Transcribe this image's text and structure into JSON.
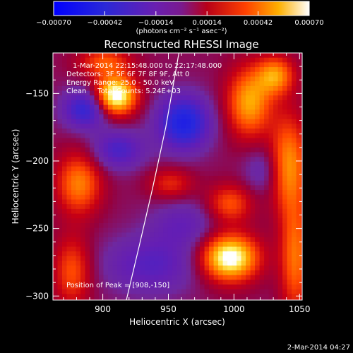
{
  "chart_data": {
    "type": "heatmap",
    "title": "Reconstructed RHESSI Image",
    "xlabel": "Heliocentric X (arcsec)",
    "ylabel": "Heliocentric Y (arcsec)",
    "xlim": [
      862,
      1052
    ],
    "ylim": [
      -303,
      -120
    ],
    "x_ticks": [
      900,
      950,
      1000,
      1050
    ],
    "y_ticks": [
      -150,
      -200,
      -250,
      -300
    ],
    "colorbar": {
      "ticks": [
        "-0.00070",
        "-0.00042",
        "-0.00014",
        "0.00014",
        "0.00042",
        "0.00070"
      ],
      "range": [
        -0.0007,
        0.0007
      ],
      "unit_label": "(photons cm⁻² s⁻¹ asec⁻²)"
    },
    "annotations": [
      "1-Mar-2014 22:15:48.000 to 22:17:48.000",
      "Detectors: 3F 5F 6F 7F 8F 9F, Att 0",
      "Energy Range: 25.0 - 50.0 keV",
      "Clean     Total Counts: 5.24E+03"
    ],
    "peak_label": "Position of Peak = [908,-150]",
    "peak_position": [
      908,
      -150
    ],
    "limb_curve": [
      [
        958,
        -120
      ],
      [
        948,
        -175
      ],
      [
        938,
        -220
      ],
      [
        928,
        -262
      ],
      [
        918,
        -303
      ]
    ],
    "sources": [
      {
        "x": 908,
        "y": -150,
        "amp": 0.0007,
        "sx": 11,
        "sy": 10
      },
      {
        "x": 995,
        "y": -270,
        "amp": 0.00068,
        "sx": 15,
        "sy": 12
      },
      {
        "x": 900,
        "y": -125,
        "amp": 0.0003,
        "sx": 14,
        "sy": 8
      },
      {
        "x": 1010,
        "y": -155,
        "amp": 0.00045,
        "sx": 12,
        "sy": 18
      },
      {
        "x": 1040,
        "y": -200,
        "amp": 0.0004,
        "sx": 10,
        "sy": 25
      },
      {
        "x": 880,
        "y": -215,
        "amp": 0.00038,
        "sx": 12,
        "sy": 16
      },
      {
        "x": 1045,
        "y": -270,
        "amp": 0.00035,
        "sx": 8,
        "sy": 30
      },
      {
        "x": 995,
        "y": -230,
        "amp": 0.0003,
        "sx": 12,
        "sy": 10
      },
      {
        "x": 875,
        "y": -280,
        "amp": 0.0003,
        "sx": 10,
        "sy": 18
      },
      {
        "x": 1030,
        "y": -135,
        "amp": 0.0004,
        "sx": 10,
        "sy": 10
      },
      {
        "x": 950,
        "y": -215,
        "amp": 0.00022,
        "sx": 12,
        "sy": 8
      },
      {
        "x": 960,
        "y": -170,
        "amp": -0.0005,
        "sx": 14,
        "sy": 14
      },
      {
        "x": 885,
        "y": -160,
        "amp": -0.0004,
        "sx": 12,
        "sy": 10
      },
      {
        "x": 910,
        "y": -190,
        "amp": -0.0003,
        "sx": 14,
        "sy": 10
      },
      {
        "x": 935,
        "y": -275,
        "amp": -0.00025,
        "sx": 25,
        "sy": 15
      },
      {
        "x": 960,
        "y": -245,
        "amp": -0.00018,
        "sx": 18,
        "sy": 12
      },
      {
        "x": 1020,
        "y": -205,
        "amp": -0.00015,
        "sx": 10,
        "sy": 12
      }
    ]
  },
  "footer": {
    "date": "2-Mar-2014 04:27"
  }
}
